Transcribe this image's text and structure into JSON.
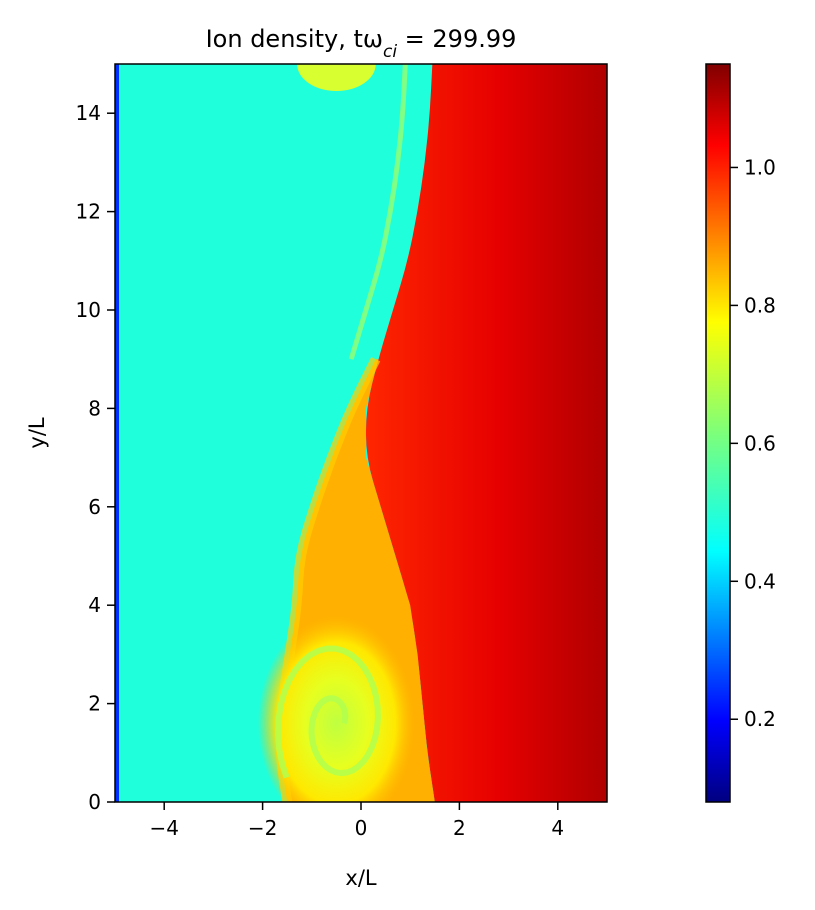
{
  "chart_data": {
    "type": "heatmap",
    "title": "Ion density, tω",
    "title_subscript": "ci",
    "title_suffix": " = 299.99",
    "xlabel": "x/L",
    "ylabel": "y/L",
    "xlim": [
      -5,
      5
    ],
    "ylim": [
      0,
      15
    ],
    "x_ticks": [
      -4,
      -2,
      0,
      2,
      4
    ],
    "x_tick_labels": [
      "−4",
      "−2",
      "0",
      "2",
      "4"
    ],
    "y_ticks": [
      0,
      2,
      4,
      6,
      8,
      10,
      12,
      14
    ],
    "y_tick_labels": [
      "0",
      "2",
      "4",
      "6",
      "8",
      "10",
      "12",
      "14"
    ],
    "colorbar": {
      "colormap": "jet",
      "range": [
        0.08,
        1.15
      ],
      "ticks": [
        0.2,
        0.4,
        0.6,
        0.8,
        1.0
      ],
      "tick_labels": [
        "0.2",
        "0.4",
        "0.6",
        "0.8",
        "1.0"
      ]
    },
    "field_summary": {
      "left_background_value": 0.5,
      "right_background_value_near_interface": 1.02,
      "right_background_value_far_edge": 1.12,
      "interface_x": [
        {
          "y": 0,
          "x": 1.5
        },
        {
          "y": 1,
          "x": 1.35
        },
        {
          "y": 2,
          "x": 1.25
        },
        {
          "y": 3,
          "x": 1.15
        },
        {
          "y": 4,
          "x": 1.0
        },
        {
          "y": 5,
          "x": 0.7
        },
        {
          "y": 6,
          "x": 0.4
        },
        {
          "y": 7,
          "x": 0.1
        },
        {
          "y": 8,
          "x": 0.1
        },
        {
          "y": 9,
          "x": 0.35
        },
        {
          "y": 10,
          "x": 0.65
        },
        {
          "y": 11,
          "x": 0.95
        },
        {
          "y": 12,
          "x": 1.15
        },
        {
          "y": 13,
          "x": 1.3
        },
        {
          "y": 14,
          "x": 1.4
        },
        {
          "y": 15,
          "x": 1.45
        }
      ],
      "left_interface_x": [
        {
          "y": 0,
          "x": -1.5
        },
        {
          "y": 1,
          "x": -1.65
        },
        {
          "y": 2,
          "x": -1.6
        },
        {
          "y": 3,
          "x": -1.45
        },
        {
          "y": 4,
          "x": -1.3
        },
        {
          "y": 5,
          "x": -1.25
        },
        {
          "y": 6,
          "x": -0.95
        },
        {
          "y": 7,
          "x": -0.6
        },
        {
          "y": 8,
          "x": -0.2
        },
        {
          "y": 9,
          "x": 0.3
        }
      ],
      "mixed_region_value": 0.85,
      "vortex_core": {
        "x": -0.5,
        "y": 1.6,
        "value": 0.72
      },
      "top_blob": {
        "x": -0.5,
        "y": 15,
        "value": 0.72
      }
    }
  }
}
